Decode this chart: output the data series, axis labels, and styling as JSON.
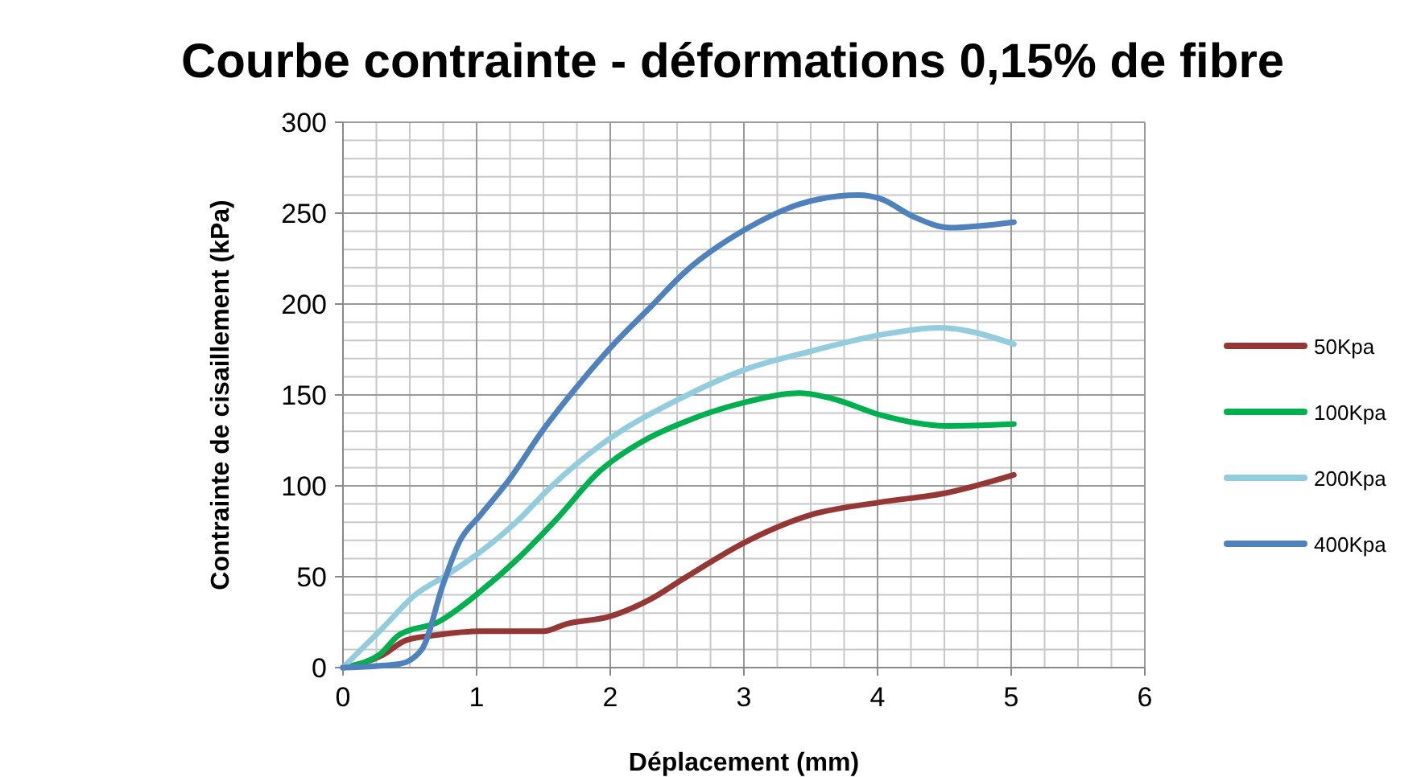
{
  "chart_data": {
    "type": "line",
    "title": "Courbe contrainte - déformations 0,15% de fibre",
    "xlabel": "Déplacement (mm)",
    "ylabel": "Contrainte de cisaillement  (kPa)",
    "xlim": [
      0,
      6
    ],
    "xticks": [
      0,
      1,
      2,
      3,
      4,
      5,
      6
    ],
    "ylim": [
      0,
      300
    ],
    "yticks": [
      0,
      50,
      100,
      150,
      200,
      250,
      300
    ],
    "grid": true,
    "legend": "right",
    "marker": "none",
    "line_style": "solid",
    "series": [
      {
        "name": "50Kpa",
        "color": "#953735",
        "x": [
          0,
          0.3,
          0.47,
          0.71,
          1.03,
          1.5,
          1.67,
          1.99,
          2.31,
          2.55,
          3.01,
          3.5,
          4.02,
          4.51,
          5.02
        ],
        "values": [
          0,
          7,
          15,
          18,
          20,
          20,
          24,
          28,
          38,
          49,
          69,
          84,
          91,
          96,
          106
        ]
      },
      {
        "name": "100Kpa",
        "color": "#00b050",
        "x": [
          0,
          0.27,
          0.42,
          0.71,
          1.03,
          1.31,
          1.59,
          1.92,
          2.28,
          2.55,
          3.01,
          3.42,
          3.66,
          4.02,
          4.51,
          5.02
        ],
        "values": [
          0,
          7,
          18,
          25,
          42,
          60,
          81,
          108,
          126,
          135,
          146,
          151,
          148,
          139,
          133,
          134
        ]
      },
      {
        "name": "200Kpa",
        "color": "#93cddd",
        "x": [
          0,
          0.3,
          0.54,
          0.78,
          1.07,
          1.31,
          1.55,
          1.92,
          2.55,
          3.01,
          3.5,
          4.02,
          4.46,
          5.02
        ],
        "values": [
          0,
          22,
          40,
          51,
          66,
          81,
          99,
          122,
          149,
          164,
          174,
          183,
          187,
          178
        ]
      },
      {
        "name": "400Kpa",
        "color": "#4f81bd",
        "x": [
          0,
          0.42,
          0.59,
          0.75,
          0.87,
          1.03,
          1.23,
          1.5,
          1.79,
          2.04,
          2.31,
          2.55,
          3.01,
          3.42,
          3.86,
          4.02,
          4.27,
          4.54,
          5.02
        ],
        "values": [
          0,
          2,
          10,
          46,
          69,
          84,
          102,
          131,
          158,
          179,
          199,
          217,
          241,
          255,
          260,
          258,
          248,
          242,
          245
        ]
      }
    ]
  }
}
